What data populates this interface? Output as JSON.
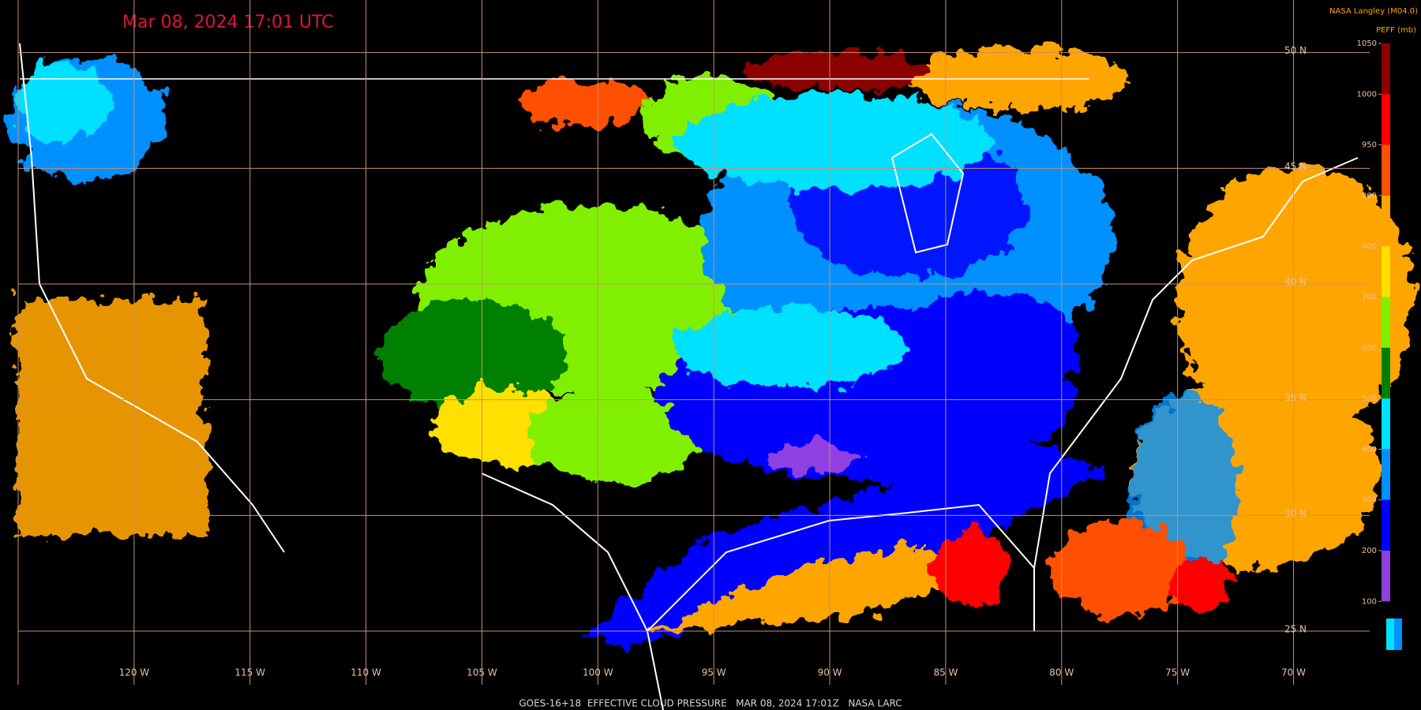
{
  "header": {
    "title": "Mar 08, 2024 17:01 UTC",
    "credit": "NASA Langley (M04.0)"
  },
  "colorbar": {
    "label": "PEFF (mb)",
    "ticks": [
      1050,
      1000,
      950,
      900,
      800,
      700,
      600,
      500,
      400,
      300,
      200,
      100
    ],
    "colors": [
      "#8b0000",
      "#ff0000",
      "#ff5000",
      "#ffa500",
      "#ffe000",
      "#80f000",
      "#008000",
      "#00e0ff",
      "#0090ff",
      "#0000ff",
      "#9040e0"
    ]
  },
  "map": {
    "lon_range": [
      -125,
      -66
    ],
    "lat_range": [
      22,
      52
    ],
    "grid_color": "#c89070",
    "lat_ticks": [
      {
        "value": 50,
        "label": "50 N"
      },
      {
        "value": 45,
        "label": "45 N"
      },
      {
        "value": 40,
        "label": "40 N"
      },
      {
        "value": 35,
        "label": "35 N"
      },
      {
        "value": 30,
        "label": "30 N"
      },
      {
        "value": 25,
        "label": "25 N"
      }
    ],
    "lon_ticks": [
      {
        "value": -125,
        "label": ""
      },
      {
        "value": -120,
        "label": "120 W"
      },
      {
        "value": -115,
        "label": "115 W"
      },
      {
        "value": -110,
        "label": "110 W"
      },
      {
        "value": -105,
        "label": "105 W"
      },
      {
        "value": -100,
        "label": "100 W"
      },
      {
        "value": -95,
        "label": "95 W"
      },
      {
        "value": -90,
        "label": "90 W"
      },
      {
        "value": -85,
        "label": "85 W"
      },
      {
        "value": -80,
        "label": "80 W"
      },
      {
        "value": -75,
        "label": "75 W"
      },
      {
        "value": -70,
        "label": "70 W"
      }
    ]
  },
  "footer": "GOES-16+18  EFFECTIVE CLOUD PRESSURE   MAR 08, 2024 17:01Z   NASA LARC"
}
